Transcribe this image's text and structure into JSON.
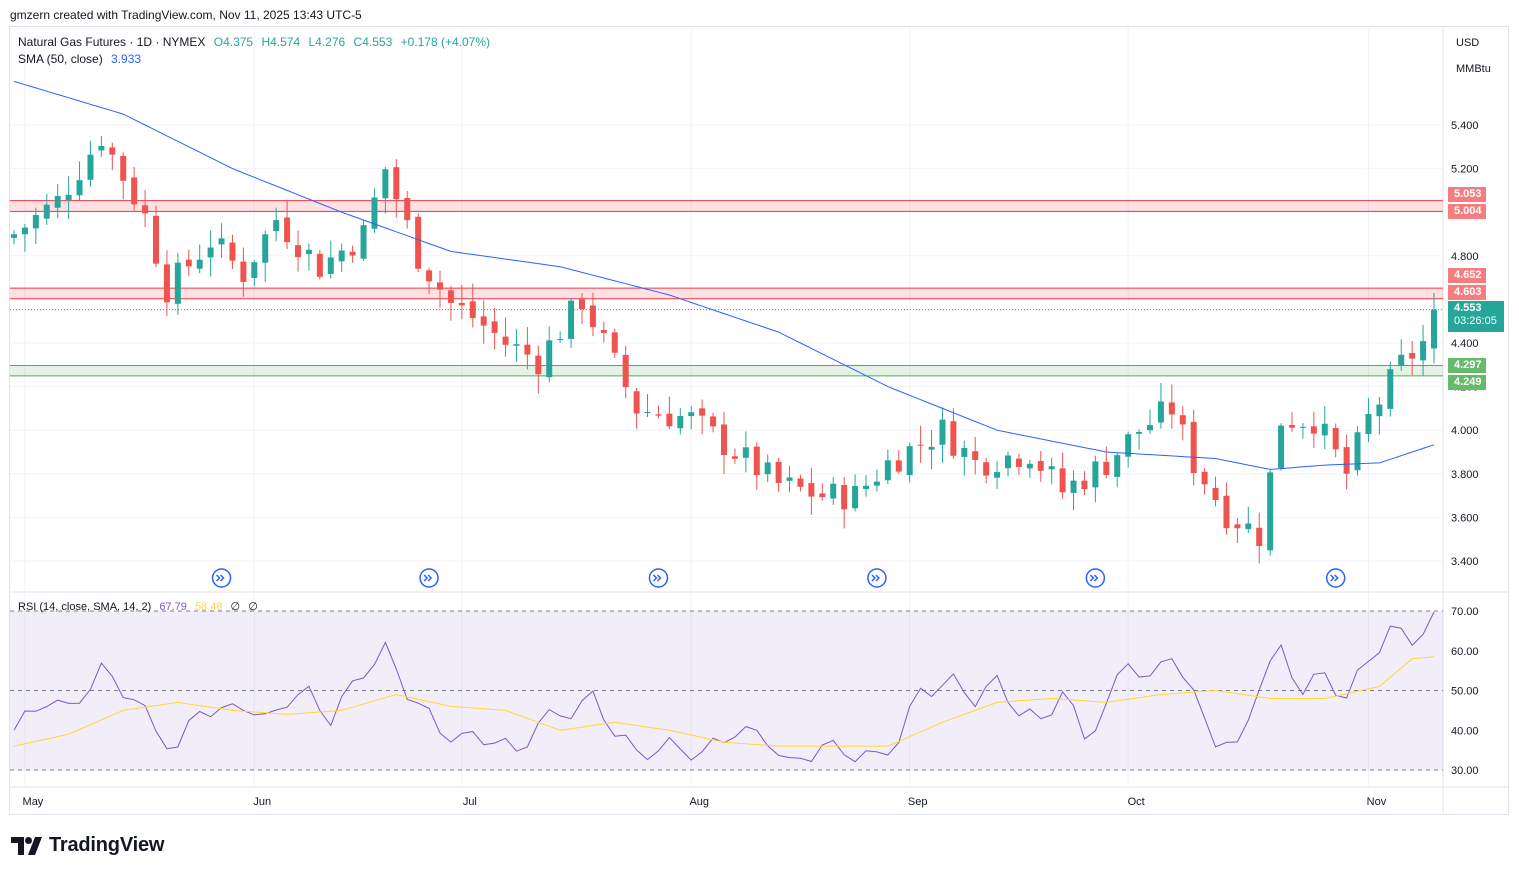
{
  "header": {
    "caption": "gmzern created with TradingView.com, Nov 11, 2025 13:43 UTC-5"
  },
  "legend": {
    "symbol": "Natural Gas Futures · 1D · NYMEX",
    "open": "O4.375",
    "high": "H4.574",
    "low": "L4.276",
    "close": "C4.553",
    "change": "+0.178 (+4.07%)",
    "sma_label": "SMA (50, close)",
    "sma_value": "3.933",
    "rsi_label": "RSI (14, close, SMA, 14, 2)",
    "rsi_value": "67.79",
    "rsi_ma_value": "58.48",
    "rsi_extra1": "∅",
    "rsi_extra2": "∅"
  },
  "price_axis": {
    "currency": "USD",
    "unit": "MMBtu"
  },
  "tags": {
    "zone_high_top": "5.053",
    "zone_high_bottom": "5.004",
    "zone_mid_top": "4.652",
    "zone_mid_bottom": "4.603",
    "last_price": "4.553",
    "countdown": "03:26:05",
    "zone_low_top": "4.297",
    "zone_low_bottom": "4.249"
  },
  "brand": "TradingView",
  "colors": {
    "up": "#26a69a",
    "down": "#ef5350",
    "sma": "#2962ff",
    "rsi": "#7e57c2",
    "rsi_ma": "#fdd835",
    "resistance_zone": "#f23645",
    "support_zone": "#4caf50",
    "events": "#2962ff"
  },
  "icons": [
    "tradingview-logo-icon",
    "event-marker-icon"
  ],
  "chart_data": [
    {
      "type": "candlestick",
      "title": "Natural Gas Futures · 1D · NYMEX",
      "y_ticks": [
        3.4,
        3.6,
        3.8,
        4.0,
        4.2,
        4.4,
        4.8,
        5.0,
        5.2,
        5.4
      ],
      "y_tick_labels": [
        "3.400",
        "3.600",
        "3.800",
        "4.000",
        "4.200",
        "4.400",
        "4.800",
        "5.000",
        "5.200",
        "5.400"
      ],
      "ylim": [
        3.25,
        5.75
      ],
      "x_month_labels": [
        {
          "label": "May",
          "index": 1
        },
        {
          "label": "Jun",
          "index": 22
        },
        {
          "label": "Jul",
          "index": 41
        },
        {
          "label": "Aug",
          "index": 62
        },
        {
          "label": "Sep",
          "index": 82
        },
        {
          "label": "Oct",
          "index": 102
        },
        {
          "label": "Nov",
          "index": 124
        }
      ],
      "candle_count": 131,
      "last_close": 4.553,
      "horizontal_zones": [
        {
          "top": 5.053,
          "bottom": 5.004,
          "kind": "resistance"
        },
        {
          "top": 4.652,
          "bottom": 4.603,
          "kind": "resistance"
        },
        {
          "top": 4.297,
          "bottom": 4.249,
          "kind": "support"
        }
      ],
      "event_marker_indices": [
        19,
        38,
        59,
        79,
        99,
        121
      ],
      "close_path_waypoints": [
        [
          0,
          4.9
        ],
        [
          4,
          5.05
        ],
        [
          8,
          5.35
        ],
        [
          12,
          4.98
        ],
        [
          14,
          4.65
        ],
        [
          18,
          4.87
        ],
        [
          21,
          4.72
        ],
        [
          24,
          4.97
        ],
        [
          28,
          4.75
        ],
        [
          32,
          4.9
        ],
        [
          34,
          5.2
        ],
        [
          37,
          4.8
        ],
        [
          40,
          4.58
        ],
        [
          42,
          4.52
        ],
        [
          45,
          4.4
        ],
        [
          48,
          4.32
        ],
        [
          52,
          4.6
        ],
        [
          54,
          4.4
        ],
        [
          57,
          4.1
        ],
        [
          62,
          4.05
        ],
        [
          66,
          3.9
        ],
        [
          70,
          3.75
        ],
        [
          74,
          3.7
        ],
        [
          77,
          3.7
        ],
        [
          80,
          3.85
        ],
        [
          85,
          4.0
        ],
        [
          88,
          3.85
        ],
        [
          93,
          3.9
        ],
        [
          96,
          3.72
        ],
        [
          100,
          3.85
        ],
        [
          103,
          4.0
        ],
        [
          106,
          4.1
        ],
        [
          108,
          3.85
        ],
        [
          111,
          3.62
        ],
        [
          114,
          3.52
        ],
        [
          116,
          4.05
        ],
        [
          119,
          4.05
        ],
        [
          122,
          3.8
        ],
        [
          124,
          4.05
        ],
        [
          127,
          4.3
        ],
        [
          129,
          4.4
        ],
        [
          130,
          4.553
        ]
      ],
      "sma_waypoints": [
        [
          0,
          5.6
        ],
        [
          10,
          5.45
        ],
        [
          20,
          5.2
        ],
        [
          30,
          5.0
        ],
        [
          40,
          4.82
        ],
        [
          50,
          4.75
        ],
        [
          60,
          4.62
        ],
        [
          70,
          4.45
        ],
        [
          80,
          4.2
        ],
        [
          90,
          4.0
        ],
        [
          100,
          3.9
        ],
        [
          110,
          3.87
        ],
        [
          115,
          3.82
        ],
        [
          120,
          3.84
        ],
        [
          125,
          3.85
        ],
        [
          130,
          3.933
        ]
      ]
    },
    {
      "type": "line",
      "title": "RSI (14, close, SMA, 14, 2)",
      "y_ticks": [
        30,
        40,
        50,
        60,
        70
      ],
      "y_tick_labels": [
        "30.00",
        "40.00",
        "50.00",
        "60.00",
        "70.00"
      ],
      "ylim": [
        25,
        75
      ],
      "band": [
        30,
        70
      ],
      "series": [
        {
          "name": "RSI",
          "last": 67.79,
          "waypoints": [
            [
              0,
              40
            ],
            [
              3,
              48
            ],
            [
              5,
              45
            ],
            [
              8,
              55
            ],
            [
              11,
              48
            ],
            [
              13,
              40
            ],
            [
              15,
              35
            ],
            [
              17,
              46
            ],
            [
              19,
              44
            ],
            [
              21,
              47
            ],
            [
              23,
              42
            ],
            [
              25,
              48
            ],
            [
              27,
              49
            ],
            [
              29,
              43
            ],
            [
              32,
              55
            ],
            [
              34,
              60
            ],
            [
              36,
              50
            ],
            [
              39,
              40
            ],
            [
              41,
              38
            ],
            [
              44,
              38
            ],
            [
              46,
              34
            ],
            [
              48,
              42
            ],
            [
              51,
              45
            ],
            [
              53,
              48
            ],
            [
              55,
              40
            ],
            [
              57,
              34
            ],
            [
              60,
              36
            ],
            [
              63,
              34
            ],
            [
              66,
              40
            ],
            [
              69,
              38
            ],
            [
              71,
              31
            ],
            [
              74,
              36
            ],
            [
              77,
              34
            ],
            [
              79,
              33
            ],
            [
              81,
              38
            ],
            [
              83,
              50
            ],
            [
              86,
              52
            ],
            [
              88,
              48
            ],
            [
              90,
              52
            ],
            [
              92,
              45
            ],
            [
              94,
              42
            ],
            [
              96,
              50
            ],
            [
              98,
              38
            ],
            [
              100,
              46
            ],
            [
              102,
              58
            ],
            [
              104,
              52
            ],
            [
              106,
              60
            ],
            [
              108,
              48
            ],
            [
              110,
              38
            ],
            [
              112,
              35
            ],
            [
              114,
              52
            ],
            [
              116,
              60
            ],
            [
              118,
              50
            ],
            [
              120,
              54
            ],
            [
              122,
              48
            ],
            [
              124,
              58
            ],
            [
              126,
              65
            ],
            [
              128,
              63
            ],
            [
              130,
              67.79
            ]
          ]
        },
        {
          "name": "RSI-based MA",
          "last": 58.48,
          "waypoints": [
            [
              0,
              36
            ],
            [
              5,
              39
            ],
            [
              10,
              45
            ],
            [
              15,
              47
            ],
            [
              20,
              45
            ],
            [
              25,
              44
            ],
            [
              30,
              45
            ],
            [
              35,
              49
            ],
            [
              40,
              46
            ],
            [
              45,
              45
            ],
            [
              50,
              40
            ],
            [
              55,
              42
            ],
            [
              60,
              40
            ],
            [
              65,
              37
            ],
            [
              70,
              36
            ],
            [
              75,
              36
            ],
            [
              80,
              36
            ],
            [
              85,
              42
            ],
            [
              90,
              47
            ],
            [
              95,
              48
            ],
            [
              100,
              47
            ],
            [
              105,
              49
            ],
            [
              110,
              50
            ],
            [
              115,
              48
            ],
            [
              120,
              48
            ],
            [
              125,
              51
            ],
            [
              128,
              58
            ],
            [
              130,
              58.48
            ]
          ]
        }
      ]
    }
  ]
}
